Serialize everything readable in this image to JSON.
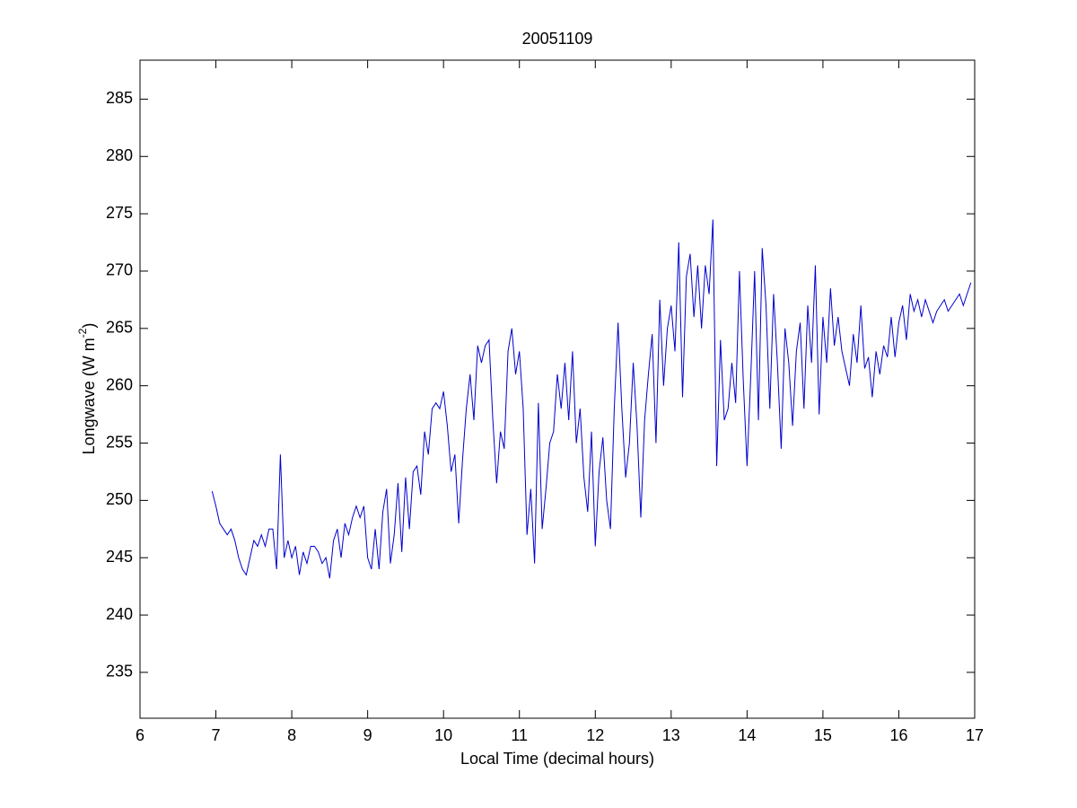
{
  "chart_data": {
    "type": "line",
    "title": "20051109",
    "xlabel": "Local Time (decimal hours)",
    "ylabel": {
      "text": "Longwave (W m",
      "superscript": "-2",
      "suffix": ")"
    },
    "xlim": [
      6,
      17
    ],
    "ylim": [
      231,
      288.4
    ],
    "xticks": [
      6,
      7,
      8,
      9,
      10,
      11,
      12,
      13,
      14,
      15,
      16,
      17
    ],
    "yticks": [
      235,
      240,
      245,
      250,
      255,
      260,
      265,
      270,
      275,
      280,
      285
    ],
    "grid": false,
    "series": [
      {
        "color": "#0000cc",
        "x": [
          6.95,
          7.0,
          7.05,
          7.1,
          7.15,
          7.2,
          7.25,
          7.3,
          7.35,
          7.4,
          7.45,
          7.5,
          7.55,
          7.6,
          7.65,
          7.7,
          7.75,
          7.8,
          7.85,
          7.9,
          7.95,
          8.0,
          8.05,
          8.1,
          8.15,
          8.2,
          8.25,
          8.3,
          8.35,
          8.4,
          8.45,
          8.5,
          8.55,
          8.6,
          8.65,
          8.7,
          8.75,
          8.8,
          8.85,
          8.9,
          8.95,
          9.0,
          9.05,
          9.1,
          9.15,
          9.2,
          9.25,
          9.3,
          9.35,
          9.4,
          9.45,
          9.5,
          9.55,
          9.6,
          9.65,
          9.7,
          9.75,
          9.8,
          9.85,
          9.9,
          9.95,
          10.0,
          10.05,
          10.1,
          10.15,
          10.2,
          10.25,
          10.3,
          10.35,
          10.4,
          10.45,
          10.5,
          10.55,
          10.6,
          10.65,
          10.7,
          10.75,
          10.8,
          10.85,
          10.9,
          10.95,
          11.0,
          11.05,
          11.1,
          11.15,
          11.2,
          11.25,
          11.3,
          11.35,
          11.4,
          11.45,
          11.5,
          11.55,
          11.6,
          11.65,
          11.7,
          11.75,
          11.8,
          11.85,
          11.9,
          11.95,
          12.0,
          12.05,
          12.1,
          12.15,
          12.2,
          12.25,
          12.3,
          12.35,
          12.4,
          12.45,
          12.5,
          12.55,
          12.6,
          12.65,
          12.7,
          12.75,
          12.8,
          12.85,
          12.9,
          12.95,
          13.0,
          13.05,
          13.1,
          13.15,
          13.2,
          13.25,
          13.3,
          13.35,
          13.4,
          13.45,
          13.5,
          13.55,
          13.6,
          13.65,
          13.7,
          13.75,
          13.8,
          13.85,
          13.9,
          13.95,
          14.0,
          14.05,
          14.1,
          14.15,
          14.2,
          14.25,
          14.3,
          14.35,
          14.4,
          14.45,
          14.5,
          14.55,
          14.6,
          14.65,
          14.7,
          14.75,
          14.8,
          14.85,
          14.9,
          14.95,
          15.0,
          15.05,
          15.1,
          15.15,
          15.2,
          15.25,
          15.3,
          15.35,
          15.4,
          15.45,
          15.5,
          15.55,
          15.6,
          15.65,
          15.7,
          15.75,
          15.8,
          15.85,
          15.9,
          15.95,
          16.0,
          16.05,
          16.1,
          16.15,
          16.2,
          16.25,
          16.3,
          16.35,
          16.4,
          16.45,
          16.5,
          16.55,
          16.6,
          16.65,
          16.7,
          16.75,
          16.8,
          16.85,
          16.9,
          16.95
        ],
        "values": [
          250.8,
          249.5,
          248,
          247.5,
          247,
          247.5,
          246.5,
          245,
          244,
          243.5,
          245,
          246.5,
          246,
          247,
          246,
          247.5,
          247.5,
          244,
          254,
          245,
          246.5,
          245,
          246,
          243.5,
          245.5,
          244.5,
          246,
          246,
          245.5,
          244.5,
          245,
          243.2,
          246.5,
          247.5,
          245,
          248,
          247,
          248.5,
          249.5,
          248.5,
          249.5,
          245,
          244,
          247.5,
          244,
          249,
          251,
          244.5,
          247,
          251.5,
          245.5,
          252,
          247.5,
          252.5,
          253,
          250.5,
          256,
          254,
          258,
          258.5,
          258,
          259.5,
          256.5,
          252.5,
          254,
          248,
          253.5,
          258,
          261,
          257,
          263.5,
          262,
          263.5,
          264,
          257,
          251.5,
          256,
          254.5,
          263,
          265,
          261,
          263,
          258,
          247,
          251,
          244.5,
          258.5,
          247.5,
          251,
          255,
          256,
          261,
          258,
          262,
          257,
          263,
          255,
          258,
          252,
          249,
          256,
          246,
          252.5,
          255.5,
          250,
          247.5,
          258,
          265.5,
          258,
          252,
          255,
          262,
          256.5,
          248.5,
          257,
          261,
          264.5,
          255,
          267.5,
          260,
          265,
          267,
          263,
          272.5,
          259,
          269.5,
          271.5,
          266,
          270.5,
          265,
          270.5,
          268,
          274.5,
          253,
          264,
          257,
          258,
          262,
          258.5,
          270,
          260.5,
          253,
          261,
          270,
          257,
          272,
          267,
          258,
          268,
          262,
          254.5,
          265,
          262,
          256.5,
          263,
          265.5,
          258,
          267,
          262,
          270.5,
          257.5,
          266,
          262,
          268.5,
          263.5,
          266,
          263,
          261.5,
          260,
          264.5,
          262,
          267,
          261.5,
          262.5,
          259,
          263,
          261,
          263.5,
          262.5,
          266,
          262.5,
          265.5,
          267,
          264,
          268,
          266.5,
          267.5,
          266,
          267.5,
          266.5,
          265.5,
          266.5,
          267,
          267.5,
          266.5,
          267,
          267.5,
          268,
          267,
          268,
          269
        ]
      }
    ]
  }
}
